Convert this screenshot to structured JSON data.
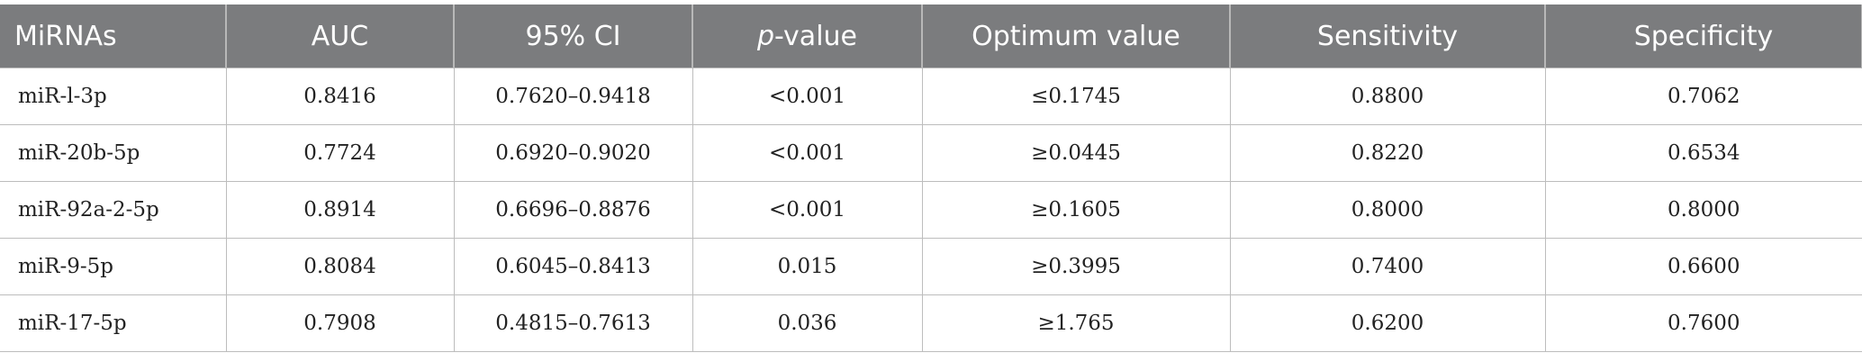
{
  "table": {
    "headers": [
      "MiRNAs",
      "AUC",
      "95% CI",
      "p-value",
      "Optimum value",
      "Sensitivity",
      "Specificity"
    ],
    "rows": [
      [
        "miR-l-3p",
        "0.8416",
        "0.7620–0.9418",
        "<0.001",
        "≤0.1745",
        "0.8800",
        "0.7062"
      ],
      [
        "miR-20b-5p",
        "0.7724",
        "0.6920–0.9020",
        "<0.001",
        "≥0.0445",
        "0.8220",
        "0.6534"
      ],
      [
        "miR-92a-2-5p",
        "0.8914",
        "0.6696–0.8876",
        "<0.001",
        "≥0.1605",
        "0.8000",
        "0.8000"
      ],
      [
        "miR-9-5p",
        "0.8084",
        "0.6045–0.8413",
        "0.015",
        "≥0.3995",
        "0.7400",
        "0.6600"
      ],
      [
        "miR-17-5p",
        "0.7908",
        "0.4815–0.7613",
        "0.036",
        "≥1.765",
        "0.6200",
        "0.7600"
      ]
    ]
  }
}
